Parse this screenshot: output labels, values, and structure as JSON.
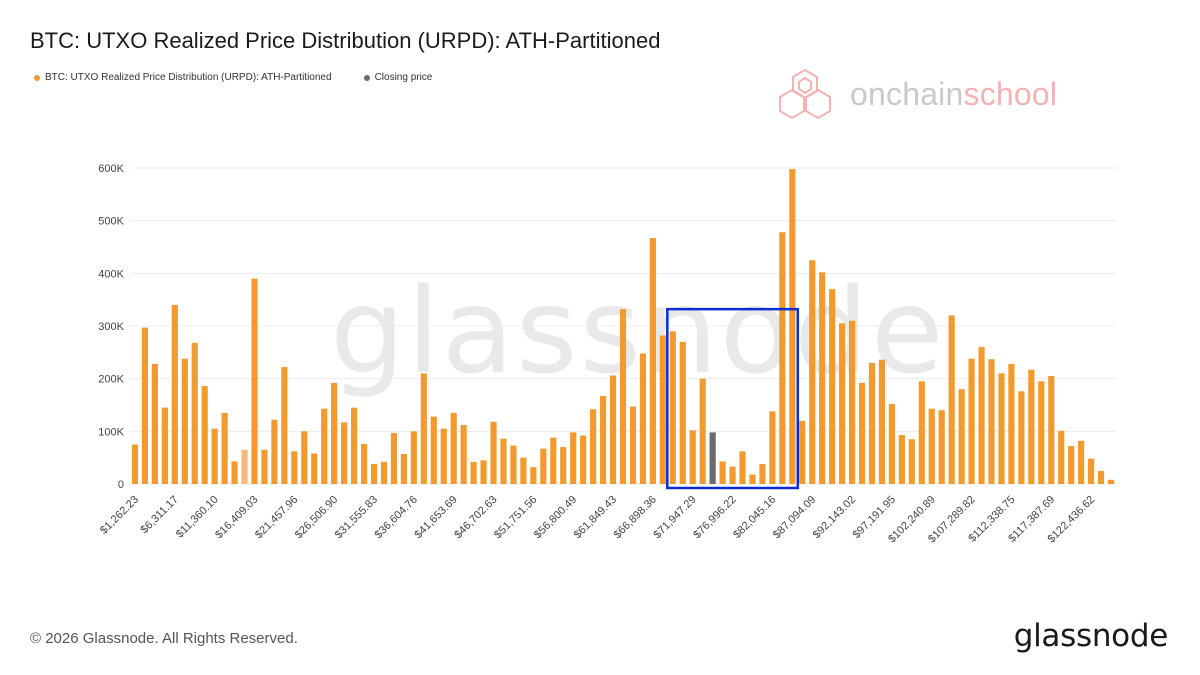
{
  "header": {
    "title": "BTC: UTXO Realized Price Distribution (URPD): ATH-Partitioned"
  },
  "legend": {
    "series_label": "BTC: UTXO Realized Price Distribution (URPD): ATH-Partitioned",
    "closing_label": "Closing price"
  },
  "branding": {
    "partner_part1": "onchain",
    "partner_part2": "school",
    "watermark": "glassnode",
    "copyright": "© 2026 Glassnode. All Rights Reserved.",
    "logo": "glassnode"
  },
  "colors": {
    "bar": "#f39a2e",
    "bar_light": "#f6b877",
    "closing": "#6b6b6b",
    "highlight_box": "#0b2bd8",
    "partner_logo": "#f3b3b3"
  },
  "chart_data": {
    "type": "bar",
    "title": "BTC: UTXO Realized Price Distribution (URPD): ATH-Partitioned",
    "xlabel": "",
    "ylabel": "",
    "ylim": [
      0,
      600000
    ],
    "grid": true,
    "legend_position": "top-left",
    "yticks": [
      0,
      100000,
      200000,
      300000,
      400000,
      500000,
      600000
    ],
    "ytick_labels": [
      "0",
      "100K",
      "200K",
      "300K",
      "400K",
      "500K",
      "600K"
    ],
    "xtick_labels": [
      "$1,262.23",
      "$6,311.17",
      "$11,360.10",
      "$16,409.03",
      "$21,457.96",
      "$26,506.90",
      "$31,555.83",
      "$36,604.76",
      "$41,653.69",
      "$46,702.63",
      "$51,751.56",
      "$56,800.49",
      "$61,849.43",
      "$66,898.36",
      "$71,947.29",
      "$76,996.22",
      "$82,045.16",
      "$87,094.09",
      "$92,143.02",
      "$97,191.95",
      "$102,240.89",
      "$107,289.82",
      "$112,338.75",
      "$117,387.69",
      "$122,436.62"
    ],
    "bar_values": [
      75000,
      297000,
      228000,
      145000,
      340000,
      238000,
      268000,
      186000,
      105000,
      135000,
      43000,
      65000,
      390000,
      65000,
      122000,
      222000,
      62000,
      100000,
      58000,
      143000,
      192000,
      117000,
      145000,
      76000,
      38000,
      42000,
      97000,
      57000,
      100000,
      210000,
      128000,
      105000,
      135000,
      112000,
      42000,
      45000,
      118000,
      86000,
      73000,
      50000,
      32000,
      67000,
      88000,
      70000,
      98000,
      92000,
      142000,
      167000,
      206000,
      332000,
      147000,
      248000,
      467000,
      282000,
      290000,
      270000,
      102000,
      200000,
      98000,
      43000,
      33000,
      62000,
      18000,
      38000,
      138000,
      478000,
      598000,
      120000,
      425000,
      402000,
      370000,
      305000,
      310000,
      192000,
      230000,
      236000,
      152000,
      93000,
      85000,
      195000,
      143000,
      140000,
      320000,
      180000,
      238000,
      260000,
      237000,
      210000,
      228000,
      176000,
      217000,
      195000,
      205000,
      101000,
      72000,
      82000,
      48000,
      25000,
      8000
    ],
    "light_bar_index": 11,
    "closing_bar_index": 58,
    "highlight_range": [
      54,
      66
    ],
    "series": [
      {
        "name": "BTC: UTXO Realized Price Distribution (URPD): ATH-Partitioned"
      },
      {
        "name": "Closing price"
      }
    ]
  }
}
